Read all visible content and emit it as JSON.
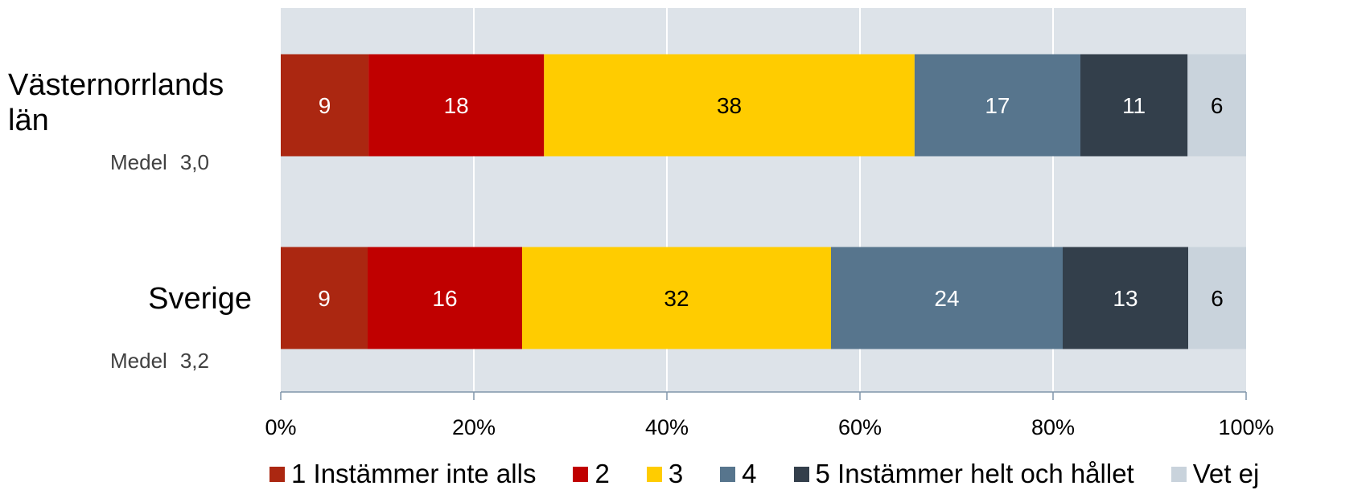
{
  "chart_data": {
    "type": "bar",
    "orientation": "horizontal",
    "stacked": true,
    "categories": [
      "Västernorrlands län",
      "Sverige"
    ],
    "series": [
      {
        "name": "1 Instämmer inte alls",
        "values": [
          9,
          9
        ],
        "color": "#ab2711"
      },
      {
        "name": "2",
        "values": [
          18,
          16
        ],
        "color": "#c00000"
      },
      {
        "name": "3",
        "values": [
          38,
          32
        ],
        "color": "#ffcc00"
      },
      {
        "name": "4",
        "values": [
          17,
          24
        ],
        "color": "#57758d"
      },
      {
        "name": "5 Instämmer helt och hållet",
        "values": [
          11,
          13
        ],
        "color": "#333f4b"
      },
      {
        "name": "Vet ej",
        "values": [
          6,
          6
        ],
        "color": "#c9d3dc"
      }
    ],
    "xlim": [
      0,
      100
    ],
    "x_ticks": [
      "0%",
      "20%",
      "40%",
      "60%",
      "80%",
      "100%"
    ],
    "grid": true,
    "legend_position": "bottom",
    "label_colors": [
      "#ffffff",
      "#ffffff",
      "#000000",
      "#ffffff",
      "#ffffff",
      "#000000"
    ],
    "medel": [
      {
        "label": "Medel",
        "value": "3,0"
      },
      {
        "label": "Medel",
        "value": "3,2"
      }
    ]
  }
}
